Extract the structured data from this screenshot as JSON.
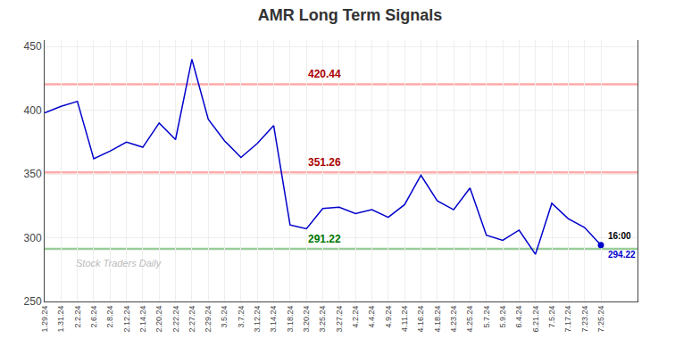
{
  "chart_data": {
    "type": "line",
    "title": "AMR Long Term Signals",
    "categories": [
      "1.29.24",
      "1.31.24",
      "2.2.24",
      "2.6.24",
      "2.8.24",
      "2.12.24",
      "2.14.24",
      "2.20.24",
      "2.22.24",
      "2.27.24",
      "2.29.24",
      "3.5.24",
      "3.7.24",
      "3.12.24",
      "3.14.24",
      "3.18.24",
      "3.20.24",
      "3.25.24",
      "3.27.24",
      "4.2.24",
      "4.4.24",
      "4.9.24",
      "4.11.24",
      "4.16.24",
      "4.18.24",
      "4.23.24",
      "4.25.24",
      "5.7.24",
      "5.9.24",
      "6.4.24",
      "6.21.24",
      "7.5.24",
      "7.17.24",
      "7.23.24",
      "7.25.24"
    ],
    "values": [
      398,
      403,
      407,
      362,
      368,
      375,
      371,
      390,
      377,
      440,
      393,
      376,
      363,
      374,
      388,
      310,
      307,
      323,
      324,
      319,
      322,
      316,
      326,
      349,
      329,
      322,
      339,
      302,
      298,
      306,
      287,
      327,
      315,
      308,
      294.22
    ],
    "color": "#0000cc",
    "marker": "circle",
    "ylim": [
      250,
      455
    ],
    "yticks": [
      250,
      300,
      350,
      400,
      450
    ],
    "grid": true,
    "hlines": [
      {
        "value": 420.44,
        "label": "420.44",
        "color": "#ffaaaa",
        "label_color": "#aa0000"
      },
      {
        "value": 351.26,
        "label": "351.26",
        "color": "#ffaaaa",
        "label_color": "#aa0000"
      },
      {
        "value": 291.22,
        "label": "291.22",
        "color": "#99cc99",
        "label_color": "#007700"
      }
    ],
    "hline_label_category": "3.20.24",
    "last_time_label": "16:00",
    "watermark": "Stock Traders Daily"
  }
}
